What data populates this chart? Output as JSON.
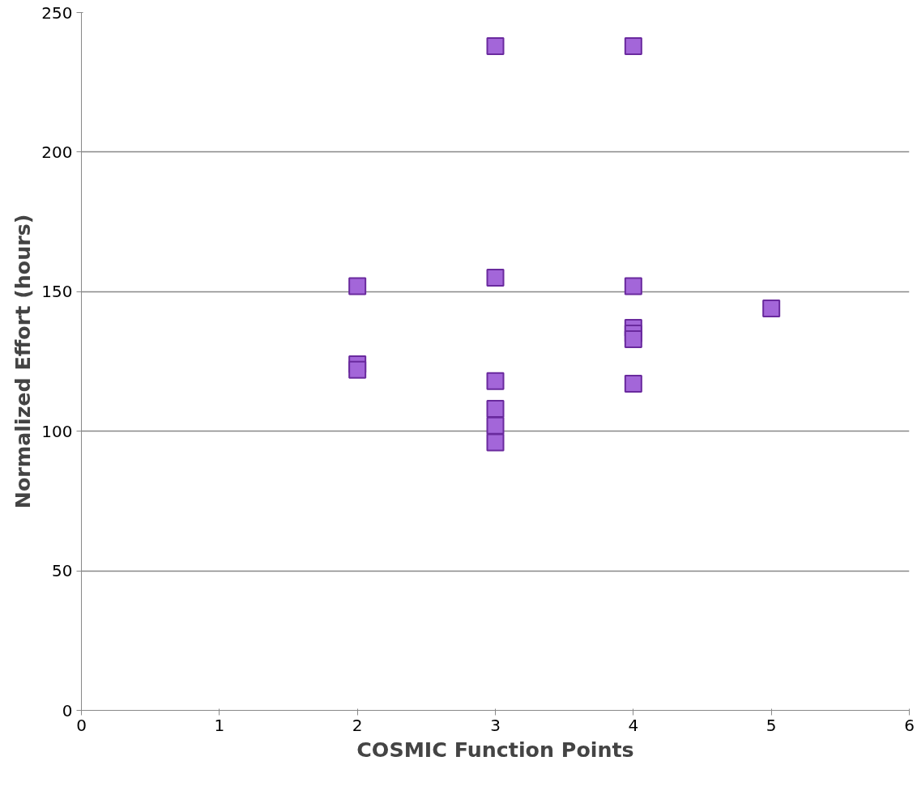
{
  "chart_data": {
    "type": "scatter",
    "xlabel": "COSMIC Function Points",
    "ylabel": "Normalized Effort (hours)",
    "x": [
      2,
      2,
      2,
      3,
      3,
      3,
      3,
      3,
      3,
      4,
      4,
      4,
      4,
      4,
      4,
      5
    ],
    "values": [
      152,
      124,
      122,
      238,
      155,
      118,
      108,
      102,
      96,
      238,
      152,
      137,
      135,
      133,
      117,
      144
    ],
    "color": "#a366d9",
    "marker": "square",
    "xlim": [
      0,
      6
    ],
    "xticks": [
      0,
      1,
      2,
      3,
      4,
      5,
      6
    ],
    "ylim": [
      0,
      250
    ],
    "yticks": [
      0,
      50,
      100,
      150,
      200,
      250
    ],
    "grid": "y"
  }
}
